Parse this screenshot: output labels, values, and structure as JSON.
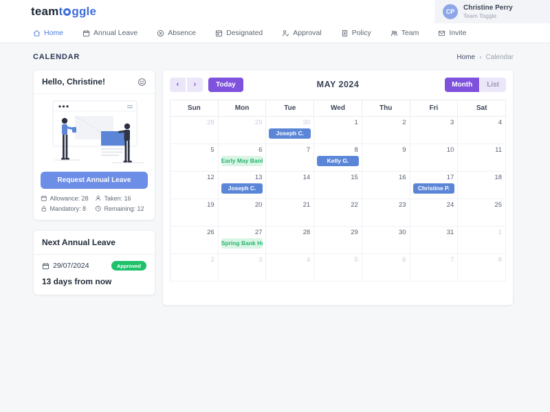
{
  "brand": {
    "part1": "team",
    "part2_pre": "t",
    "part2_post": "ggle"
  },
  "user": {
    "initials": "CP",
    "name": "Christine Perry",
    "org": "Team Toggle"
  },
  "nav": {
    "items": [
      {
        "label": "Home",
        "icon": "home-icon",
        "active": true
      },
      {
        "label": "Annual Leave",
        "icon": "annual-leave-icon",
        "active": false
      },
      {
        "label": "Absence",
        "icon": "absence-icon",
        "active": false
      },
      {
        "label": "Designated",
        "icon": "designated-icon",
        "active": false
      },
      {
        "label": "Approval",
        "icon": "approval-icon",
        "active": false
      },
      {
        "label": "Policy",
        "icon": "policy-icon",
        "active": false
      },
      {
        "label": "Team",
        "icon": "team-icon",
        "active": false
      },
      {
        "label": "Invite",
        "icon": "invite-icon",
        "active": false
      }
    ]
  },
  "page": {
    "title": "CALENDAR",
    "breadcrumb": [
      "Home",
      "Calendar"
    ]
  },
  "icons": {
    "prev": "‹",
    "next": "›",
    "crumb_sep": "›"
  },
  "sidebar": {
    "greeting": "Hello, Christine!",
    "request_button": "Request Annual Leave",
    "stats": [
      {
        "icon": "calendar-icon",
        "label": "Allowance: 28"
      },
      {
        "icon": "person-icon",
        "label": "Taken: 16"
      },
      {
        "icon": "lock-icon",
        "label": "Mandatory: 8"
      },
      {
        "icon": "clock-icon",
        "label": "Remaining: 12"
      }
    ],
    "next_leave": {
      "title": "Next Annual Leave",
      "date": "29/07/2024",
      "badge": "Approved",
      "relative": "13 days from now"
    }
  },
  "calendar": {
    "title": "MAY 2024",
    "today_label": "Today",
    "view_month": "Month",
    "view_list": "List",
    "day_headers": [
      "Sun",
      "Mon",
      "Tue",
      "Wed",
      "Thu",
      "Fri",
      "Sat"
    ],
    "weeks": [
      [
        {
          "d": 28,
          "muted": true
        },
        {
          "d": 29,
          "muted": true
        },
        {
          "d": 30,
          "muted": true,
          "event": {
            "label": "Joseph C.",
            "type": "blue"
          }
        },
        {
          "d": 1
        },
        {
          "d": 2
        },
        {
          "d": 3
        },
        {
          "d": 4
        }
      ],
      [
        {
          "d": 5
        },
        {
          "d": 6,
          "event": {
            "label": "Early May Bank …",
            "type": "green"
          }
        },
        {
          "d": 7
        },
        {
          "d": 8,
          "event": {
            "label": "Kelly G.",
            "type": "blue"
          }
        },
        {
          "d": 9
        },
        {
          "d": 10
        },
        {
          "d": 11
        }
      ],
      [
        {
          "d": 12
        },
        {
          "d": 13,
          "event": {
            "label": "Joseph C.",
            "type": "blue"
          }
        },
        {
          "d": 14
        },
        {
          "d": 15
        },
        {
          "d": 16
        },
        {
          "d": 17,
          "event": {
            "label": "Christine P.",
            "type": "blue"
          }
        },
        {
          "d": 18
        }
      ],
      [
        {
          "d": 19
        },
        {
          "d": 20
        },
        {
          "d": 21
        },
        {
          "d": 22
        },
        {
          "d": 23
        },
        {
          "d": 24
        },
        {
          "d": 25
        }
      ],
      [
        {
          "d": 26
        },
        {
          "d": 27,
          "event": {
            "label": "Spring Bank Holi…",
            "type": "green"
          }
        },
        {
          "d": 28
        },
        {
          "d": 29
        },
        {
          "d": 30
        },
        {
          "d": 31
        },
        {
          "d": 1,
          "muted": true
        }
      ],
      [
        {
          "d": 2,
          "muted": true
        },
        {
          "d": 3,
          "muted": true
        },
        {
          "d": 4,
          "muted": true
        },
        {
          "d": 5,
          "muted": true
        },
        {
          "d": 6,
          "muted": true
        },
        {
          "d": 7,
          "muted": true
        },
        {
          "d": 8,
          "muted": true
        }
      ]
    ]
  },
  "colors": {
    "brand_blue": "#3f6ed8",
    "accent_purple": "#7e52dd",
    "accent_purple_light": "#ece6f9",
    "event_blue": "#5b86d8",
    "event_green_bg": "#d9f5e6",
    "event_green_text": "#27b56d",
    "approved_green": "#1fc16b",
    "button_blue": "#6d8ee6",
    "avatar_blue": "#8ca6e8"
  }
}
